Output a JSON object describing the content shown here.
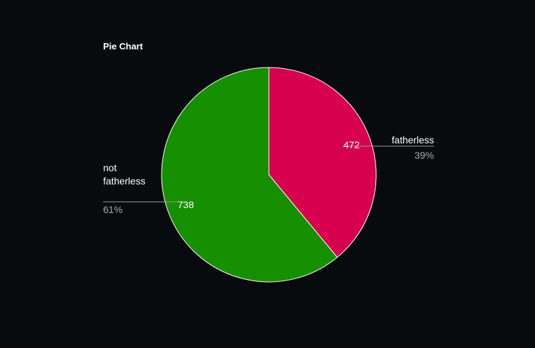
{
  "chart_data": {
    "type": "pie",
    "title": "Pie Chart",
    "slices": [
      {
        "label": "fatherless",
        "label_lines": [
          "fatherless"
        ],
        "value": 472,
        "percent_label": "39%",
        "color": "#d6004f"
      },
      {
        "label": "not fatherless",
        "label_lines": [
          "not",
          "fatherless"
        ],
        "value": 738,
        "percent_label": "61%",
        "color": "#168f00"
      }
    ],
    "start_angle": "12 o'clock",
    "direction": "clockwise"
  },
  "colors": {
    "background": "#080b0d",
    "slice_border": "#ffffff"
  }
}
